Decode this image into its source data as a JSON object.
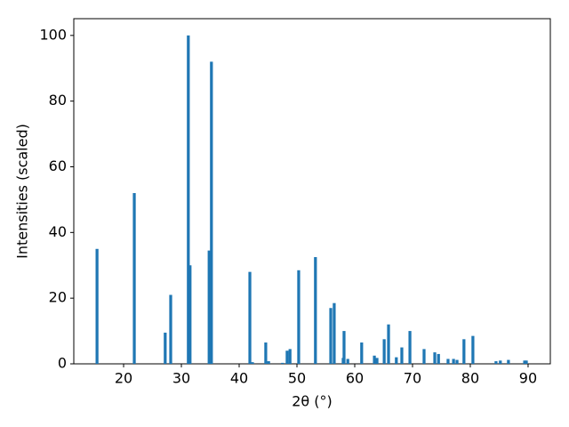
{
  "chart_data": {
    "type": "bar",
    "x": [
      15.4,
      21.85,
      27.2,
      28.15,
      31.2,
      31.5,
      34.8,
      35.2,
      41.85,
      42.3,
      44.6,
      45.1,
      47.5,
      48.3,
      48.8,
      50.3,
      53.2,
      55.85,
      56.45,
      58.0,
      58.15,
      58.8,
      61.2,
      63.4,
      63.85,
      65.1,
      65.85,
      67.2,
      68.15,
      69.55,
      72.0,
      73.85,
      74.5,
      76.15,
      77.1,
      77.7,
      78.9,
      80.45,
      84.45,
      85.2,
      86.6,
      89.4,
      89.7
    ],
    "values": [
      35,
      52,
      9.5,
      21,
      100,
      30,
      34.5,
      92,
      28,
      0.5,
      6.5,
      0.8,
      0.3,
      4,
      4.5,
      28.5,
      32.5,
      17,
      18.5,
      1.8,
      10,
      1.5,
      6.5,
      2.5,
      1.8,
      7.5,
      12,
      2,
      5,
      10,
      4.5,
      3.5,
      3,
      1.5,
      1.5,
      1.2,
      7.5,
      8.5,
      0.8,
      1,
      1.2,
      1,
      1
    ],
    "color": "#1f77b4",
    "xlabel": "2θ (°)",
    "ylabel": "Intensities (scaled)",
    "xlim": [
      11.38,
      93.85
    ],
    "xticks": [
      20,
      30,
      40,
      50,
      60,
      70,
      80,
      90
    ],
    "ylim": [
      0,
      105.1
    ],
    "yticks": [
      0,
      20,
      40,
      60,
      80,
      100
    ]
  }
}
